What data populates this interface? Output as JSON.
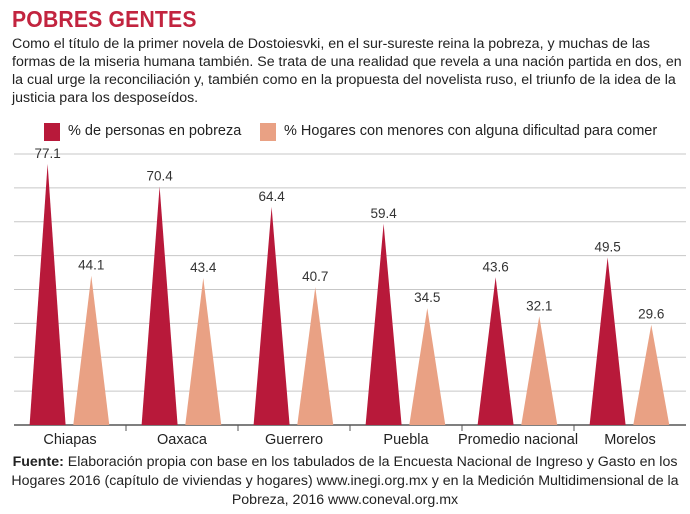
{
  "header": {
    "title": "POBRES GENTES",
    "subtitle": "Como el título de la primer novela de Dostoiesvki, en el sur-sureste reina la pobreza, y muchas de las formas de la miseria humana también. Se trata de una realidad que revela a una nación partida en dos, en la cual urge la reconciliación y, también como en la propuesta del novelista ruso, el triunfo de la idea de la justicia para los desposeídos."
  },
  "colors": {
    "poverty": "#b8193a",
    "hunger": "#e9a184",
    "title": "#c2243f",
    "grid": "#c7c7c7"
  },
  "chart_data": {
    "type": "bar",
    "categories": [
      "Chiapas",
      "Oaxaca",
      "Guerrero",
      "Puebla",
      "Promedio nacional",
      "Morelos"
    ],
    "series": [
      {
        "name": "% de personas en pobreza",
        "values": [
          77.1,
          70.4,
          64.4,
          59.4,
          43.6,
          49.5
        ],
        "labels": [
          "77.1",
          "70.4",
          "64.4",
          "59.4",
          "43.6",
          "49.5"
        ]
      },
      {
        "name": "% Hogares con menores con alguna dificultad para comer",
        "values": [
          44.1,
          43.4,
          40.7,
          34.5,
          32.1,
          29.6
        ],
        "labels": [
          "44.1",
          "43.4",
          "40.7",
          "34.5",
          "32.1",
          "29.6"
        ]
      }
    ],
    "title": "",
    "xlabel": "",
    "ylabel": "",
    "ylim": [
      0,
      80
    ],
    "grid": true,
    "legend_position": "top-left"
  },
  "footer": {
    "source_label": "Fuente:",
    "source_text": " Elaboración propia con base en los tabulados de la Encuesta Nacional de Ingreso y Gasto en los Hogares 2016 (capítulo de viviendas y hogares) www.inegi.org.mx y en la Medición Multidimensional de la Pobreza, 2016 www.coneval.org.mx"
  }
}
